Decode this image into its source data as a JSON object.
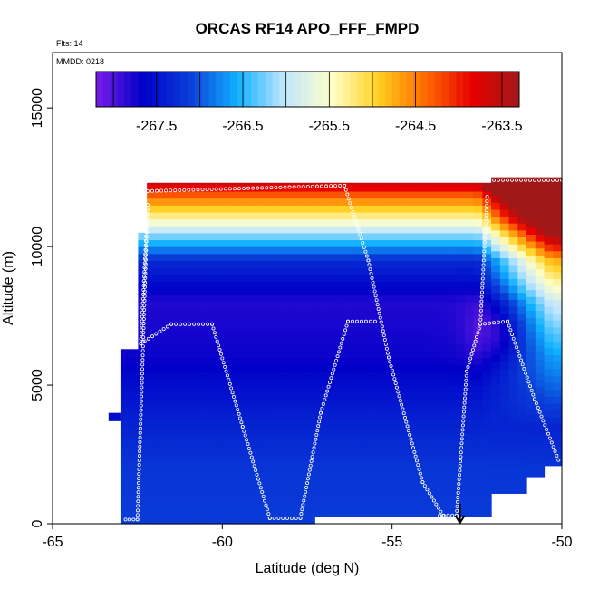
{
  "chart_data": {
    "type": "heatmap",
    "title": "ORCAS RF14 APO_FFF_FMPD",
    "annotations": {
      "flights": "Flts: 14",
      "date": "MMDD: 0218"
    },
    "xlabel": "Latitude (deg N)",
    "ylabel": "Altitude (m)",
    "xlim": [
      -65,
      -50
    ],
    "ylim": [
      0,
      17000
    ],
    "x_ticks": [
      -65,
      -60,
      -55,
      -50
    ],
    "x_tick_labels": [
      "-65",
      "-60",
      "-55",
      "-50"
    ],
    "y_ticks": [
      0,
      5000,
      10000,
      15000
    ],
    "y_tick_labels": [
      "0",
      "5000",
      "10000",
      "15000"
    ],
    "colorbar": {
      "range": [
        -268.2,
        -263.3
      ],
      "ticks": [
        -267.5,
        -266.5,
        -265.5,
        -264.5,
        -263.5
      ],
      "tick_labels": [
        "-267.5",
        "-266.5",
        "-265.5",
        "-264.5",
        "-263.5"
      ],
      "colors": [
        "#7a1ee8",
        "#0000c8",
        "#0a3fd8",
        "#0fb0ff",
        "#bfe6ff",
        "#ffffc8",
        "#ffd020",
        "#ff6a00",
        "#e80000",
        "#a01818"
      ]
    },
    "field_profile": {
      "altitudes_m": [
        0,
        2000,
        4000,
        6000,
        8000,
        9500,
        10000,
        10500,
        11000,
        11500,
        12000,
        12300
      ],
      "values": [
        -267.15,
        -267.2,
        -267.4,
        -267.7,
        -267.8,
        -267.3,
        -266.7,
        -266.1,
        -265.4,
        -264.8,
        -264.1,
        -263.5
      ]
    },
    "markers": [
      {
        "type": "arrow",
        "x": -53.0,
        "y": 0,
        "direction": "down"
      }
    ]
  }
}
